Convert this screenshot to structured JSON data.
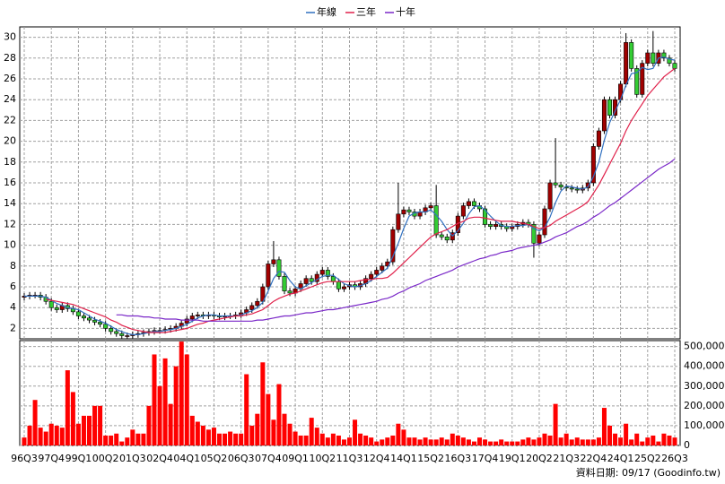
{
  "chart_data": {
    "type": "candlestick",
    "categories": [
      "96Q3",
      null,
      null,
      null,
      null,
      "97Q4",
      null,
      null,
      null,
      null,
      "99Q1",
      null,
      null,
      null,
      null,
      "00Q2",
      null,
      null,
      null,
      null,
      "01Q3",
      null,
      null,
      null,
      null,
      "02Q4",
      null,
      null,
      null,
      null,
      "04Q1",
      null,
      null,
      null,
      null,
      "05Q2",
      null,
      null,
      null,
      null,
      "06Q3",
      null,
      null,
      null,
      null,
      "07Q4",
      null,
      null,
      null,
      null,
      "09Q1",
      null,
      null,
      null,
      null,
      "10Q2",
      null,
      null,
      null,
      null,
      "11Q3",
      null,
      null,
      null,
      null,
      "12Q4",
      null,
      null,
      null,
      null,
      "14Q1",
      null,
      null,
      null,
      null,
      "15Q2",
      null,
      null,
      null,
      null,
      "16Q3",
      null,
      null,
      null,
      null,
      "17Q4",
      null,
      null,
      null,
      null,
      "19Q1",
      null,
      null,
      null,
      null,
      "20Q2",
      null,
      null,
      null,
      null,
      "21Q3",
      null,
      null,
      null,
      null,
      "22Q4",
      null,
      null,
      null,
      null,
      "24Q1",
      null,
      null,
      null,
      null,
      "25Q2",
      null,
      null,
      null,
      null,
      "26Q3"
    ],
    "open": [
      5.0,
      5.1,
      5.2,
      5.2,
      5.0,
      4.6,
      4.0,
      3.8,
      4.2,
      3.9,
      3.6,
      3.2,
      3.0,
      2.8,
      2.6,
      2.4,
      2.0,
      1.7,
      1.5,
      1.3,
      1.3,
      1.4,
      1.5,
      1.6,
      1.7,
      1.8,
      1.8,
      1.9,
      2.0,
      2.2,
      2.5,
      2.9,
      3.2,
      3.3,
      3.2,
      3.3,
      3.2,
      3.1,
      3.2,
      3.2,
      3.3,
      3.5,
      3.8,
      4.2,
      4.6,
      6.0,
      8.2,
      8.6,
      7.0,
      5.6,
      5.4,
      5.8,
      6.3,
      6.8,
      6.5,
      7.2,
      7.6,
      7.0,
      6.5,
      5.8,
      6.0,
      6.2,
      6.0,
      6.3,
      6.8,
      7.2,
      7.6,
      8.0,
      8.4,
      11.5,
      13.0,
      13.4,
      13.2,
      12.8,
      13.2,
      13.6,
      13.8,
      11.0,
      10.8,
      10.5,
      11.2,
      12.8,
      13.8,
      14.2,
      13.8,
      13.5,
      12.0,
      11.8,
      12.0,
      11.8,
      11.6,
      11.8,
      12.0,
      12.2,
      12.0,
      10.2,
      11.0,
      13.5,
      16.0,
      15.8,
      15.6,
      15.5,
      15.4,
      15.3,
      15.5,
      16.0,
      19.5,
      21.0,
      24.0,
      22.5,
      24.0,
      25.5,
      29.5,
      27.0,
      24.5,
      27.5,
      28.5,
      27.5,
      28.5,
      28.0,
      27.5
    ],
    "high": [
      5.4,
      5.5,
      5.5,
      5.5,
      5.3,
      4.9,
      4.3,
      4.5,
      4.5,
      4.2,
      3.9,
      3.5,
      3.3,
      3.1,
      2.9,
      2.7,
      2.3,
      2.0,
      1.8,
      1.6,
      1.7,
      1.8,
      1.9,
      2.0,
      2.1,
      2.1,
      2.2,
      2.3,
      2.5,
      2.8,
      3.2,
      3.5,
      3.6,
      3.6,
      3.6,
      3.6,
      3.5,
      3.5,
      3.5,
      3.6,
      3.8,
      4.1,
      4.5,
      4.9,
      6.3,
      8.5,
      10.4,
      8.9,
      7.3,
      5.9,
      6.1,
      6.6,
      7.1,
      7.1,
      7.5,
      7.9,
      7.9,
      7.3,
      6.8,
      6.3,
      6.5,
      6.5,
      6.6,
      7.1,
      7.5,
      7.9,
      8.3,
      8.7,
      11.8,
      16.0,
      13.7,
      13.7,
      13.5,
      13.5,
      13.9,
      14.1,
      15.8,
      11.3,
      11.1,
      11.5,
      13.1,
      14.1,
      14.5,
      14.5,
      14.1,
      13.8,
      12.3,
      12.3,
      12.3,
      12.1,
      12.1,
      12.3,
      12.5,
      12.5,
      12.3,
      11.3,
      13.8,
      16.3,
      20.3,
      16.1,
      15.9,
      15.8,
      15.7,
      15.8,
      16.3,
      19.8,
      21.3,
      24.3,
      24.3,
      24.3,
      25.8,
      30.4,
      29.8,
      27.3,
      27.8,
      28.8,
      30.6,
      28.8,
      28.8,
      28.3,
      27.8
    ],
    "low": [
      4.7,
      4.8,
      4.9,
      4.7,
      4.3,
      3.7,
      3.5,
      3.5,
      3.6,
      3.3,
      2.9,
      2.7,
      2.5,
      2.3,
      2.1,
      1.7,
      1.4,
      1.2,
      1.0,
      1.0,
      1.0,
      1.1,
      1.2,
      1.3,
      1.4,
      1.5,
      1.5,
      1.6,
      1.7,
      1.9,
      2.2,
      2.6,
      2.9,
      2.9,
      2.9,
      2.9,
      2.8,
      2.8,
      2.9,
      2.9,
      3.0,
      3.2,
      3.5,
      3.9,
      4.3,
      5.7,
      7.9,
      6.7,
      5.3,
      5.1,
      5.1,
      5.5,
      6.0,
      6.2,
      6.2,
      6.9,
      6.7,
      6.2,
      5.5,
      5.5,
      5.7,
      5.7,
      5.7,
      6.0,
      6.5,
      6.9,
      7.3,
      7.7,
      8.1,
      11.2,
      12.7,
      12.9,
      12.5,
      12.5,
      12.9,
      13.3,
      10.7,
      10.5,
      10.2,
      10.2,
      10.9,
      12.5,
      13.5,
      13.5,
      13.2,
      11.7,
      11.5,
      11.5,
      11.5,
      11.3,
      11.3,
      11.5,
      11.7,
      11.7,
      8.8,
      9.9,
      10.7,
      13.2,
      15.5,
      15.3,
      15.2,
      15.1,
      15.0,
      15.0,
      15.2,
      15.7,
      19.2,
      20.7,
      22.2,
      22.2,
      23.7,
      25.2,
      26.7,
      24.2,
      24.2,
      27.2,
      27.2,
      27.2,
      27.7,
      27.2,
      26.7
    ],
    "close": [
      5.1,
      5.2,
      5.2,
      5.0,
      4.6,
      4.0,
      3.8,
      4.2,
      3.9,
      3.6,
      3.2,
      3.0,
      2.8,
      2.6,
      2.4,
      2.0,
      1.7,
      1.5,
      1.3,
      1.3,
      1.4,
      1.5,
      1.6,
      1.7,
      1.8,
      1.8,
      1.9,
      2.0,
      2.2,
      2.5,
      2.9,
      3.2,
      3.3,
      3.2,
      3.3,
      3.2,
      3.1,
      3.2,
      3.2,
      3.3,
      3.5,
      3.8,
      4.2,
      4.6,
      6.0,
      8.2,
      8.6,
      7.0,
      5.6,
      5.4,
      5.8,
      6.3,
      6.8,
      6.5,
      7.2,
      7.6,
      7.0,
      6.5,
      5.8,
      6.0,
      6.2,
      6.0,
      6.3,
      6.8,
      7.2,
      7.6,
      8.0,
      8.4,
      11.5,
      13.0,
      13.4,
      13.2,
      12.8,
      13.2,
      13.6,
      13.8,
      11.0,
      10.8,
      10.5,
      11.2,
      12.8,
      13.8,
      14.2,
      13.8,
      13.5,
      12.0,
      11.8,
      12.0,
      11.8,
      11.6,
      11.8,
      12.0,
      12.2,
      12.0,
      10.2,
      11.0,
      13.5,
      16.0,
      15.8,
      15.6,
      15.5,
      15.4,
      15.3,
      15.5,
      16.0,
      19.5,
      21.0,
      24.0,
      22.5,
      24.0,
      25.5,
      29.5,
      27.0,
      24.5,
      27.5,
      28.5,
      27.5,
      28.5,
      28.0,
      27.5,
      27.0
    ],
    "up_color": "#a00000",
    "down_color": "#33cc33",
    "ylim": [
      1,
      31
    ],
    "yticks": [
      2,
      4,
      6,
      8,
      10,
      12,
      14,
      16,
      18,
      20,
      22,
      24,
      26,
      28,
      30
    ],
    "grid": true,
    "series": [
      {
        "name": "年線",
        "color": "#3070c0",
        "values": [
          5.1,
          5.1,
          5.1,
          5.1,
          5.0,
          4.7,
          4.4,
          4.2,
          4.0,
          3.9,
          3.8,
          3.5,
          3.2,
          2.9,
          2.7,
          2.5,
          2.2,
          1.9,
          1.7,
          1.5,
          1.4,
          1.4,
          1.5,
          1.6,
          1.7,
          1.7,
          1.8,
          1.9,
          2.0,
          2.2,
          2.4,
          2.7,
          3.0,
          3.2,
          3.3,
          3.3,
          3.2,
          3.2,
          3.2,
          3.2,
          3.3,
          3.5,
          3.7,
          4.0,
          4.5,
          5.6,
          6.8,
          7.5,
          7.4,
          6.6,
          6.0,
          5.8,
          6.1,
          6.4,
          6.7,
          7.0,
          7.1,
          7.1,
          6.7,
          6.3,
          6.1,
          6.0,
          6.1,
          6.3,
          6.6,
          7.0,
          7.4,
          7.8,
          8.9,
          10.2,
          11.6,
          12.8,
          13.1,
          13.2,
          13.2,
          13.4,
          12.9,
          12.3,
          11.5,
          10.9,
          11.4,
          12.1,
          13.0,
          13.7,
          13.8,
          13.4,
          12.8,
          12.3,
          11.9,
          11.8,
          11.8,
          11.9,
          11.9,
          12.0,
          11.6,
          11.4,
          11.7,
          12.7,
          14.1,
          15.2,
          15.7,
          15.6,
          15.5,
          15.4,
          15.6,
          16.6,
          18.0,
          20.1,
          21.8,
          22.9,
          24.0,
          25.4,
          26.5,
          26.6,
          27.1,
          26.9,
          27.0,
          28.0,
          28.1,
          27.9,
          27.8
        ]
      },
      {
        "name": "三年",
        "color": "#e0204a",
        "values": [
          null,
          null,
          null,
          null,
          4.8,
          4.7,
          4.6,
          4.5,
          4.4,
          4.3,
          4.1,
          3.9,
          3.7,
          3.5,
          3.3,
          3.1,
          2.8,
          2.6,
          2.3,
          2.1,
          1.9,
          1.8,
          1.7,
          1.6,
          1.6,
          1.6,
          1.6,
          1.7,
          1.8,
          1.9,
          2.0,
          2.2,
          2.4,
          2.5,
          2.7,
          2.8,
          2.9,
          3.0,
          3.1,
          3.2,
          3.2,
          3.3,
          3.4,
          3.6,
          3.8,
          4.2,
          4.6,
          4.9,
          5.1,
          5.3,
          5.4,
          5.6,
          5.8,
          6.0,
          6.2,
          6.4,
          6.5,
          6.5,
          6.5,
          6.5,
          6.5,
          6.5,
          6.6,
          6.7,
          6.7,
          6.8,
          6.8,
          6.9,
          7.3,
          7.8,
          8.3,
          8.8,
          9.3,
          9.8,
          10.3,
          10.8,
          11.1,
          11.3,
          11.5,
          11.8,
          12.1,
          12.3,
          12.6,
          12.7,
          12.7,
          12.6,
          12.5,
          12.4,
          12.3,
          12.3,
          12.3,
          12.2,
          12.1,
          12.0,
          11.8,
          11.6,
          11.7,
          11.9,
          12.3,
          12.6,
          12.9,
          13.2,
          13.5,
          13.8,
          14.2,
          15.0,
          15.8,
          16.8,
          17.8,
          18.8,
          19.8,
          21.0,
          22.0,
          22.8,
          23.6,
          24.4,
          25.0,
          25.6,
          26.2,
          26.6,
          27.0
        ]
      },
      {
        "name": "十年",
        "color": "#7a28c8",
        "values": [
          null,
          null,
          null,
          null,
          null,
          null,
          null,
          null,
          null,
          null,
          null,
          null,
          null,
          null,
          null,
          null,
          null,
          3.3,
          3.3,
          3.2,
          3.2,
          3.2,
          3.1,
          3.1,
          3.0,
          3.0,
          2.9,
          2.9,
          2.9,
          2.8,
          2.8,
          2.8,
          2.8,
          2.7,
          2.7,
          2.7,
          2.7,
          2.7,
          2.7,
          2.7,
          2.7,
          2.7,
          2.7,
          2.8,
          2.8,
          2.9,
          3.0,
          3.1,
          3.2,
          3.2,
          3.3,
          3.4,
          3.5,
          3.5,
          3.6,
          3.7,
          3.8,
          3.8,
          3.9,
          4.0,
          4.1,
          4.2,
          4.3,
          4.4,
          4.5,
          4.6,
          4.8,
          4.9,
          5.1,
          5.4,
          5.6,
          5.9,
          6.1,
          6.3,
          6.6,
          6.8,
          7.0,
          7.2,
          7.4,
          7.6,
          7.9,
          8.1,
          8.3,
          8.5,
          8.7,
          8.8,
          9.0,
          9.1,
          9.3,
          9.4,
          9.5,
          9.7,
          9.8,
          9.9,
          10.0,
          10.1,
          10.3,
          10.5,
          10.8,
          11.0,
          11.2,
          11.5,
          11.8,
          12.0,
          12.3,
          12.7,
          13.0,
          13.4,
          13.8,
          14.1,
          14.5,
          14.9,
          15.3,
          15.7,
          16.1,
          16.5,
          16.9,
          17.3,
          17.6,
          17.9,
          18.3
        ]
      }
    ],
    "volume": {
      "color": "#ff0000",
      "values": [
        40000,
        100000,
        230000,
        90000,
        70000,
        110000,
        100000,
        90000,
        380000,
        270000,
        110000,
        150000,
        150000,
        200000,
        200000,
        50000,
        50000,
        60000,
        20000,
        40000,
        80000,
        60000,
        60000,
        200000,
        460000,
        300000,
        440000,
        210000,
        400000,
        525000,
        460000,
        150000,
        120000,
        100000,
        80000,
        90000,
        60000,
        60000,
        70000,
        60000,
        60000,
        360000,
        100000,
        160000,
        420000,
        260000,
        130000,
        310000,
        160000,
        110000,
        70000,
        50000,
        50000,
        140000,
        90000,
        60000,
        40000,
        60000,
        50000,
        30000,
        40000,
        130000,
        60000,
        50000,
        40000,
        20000,
        30000,
        40000,
        50000,
        110000,
        80000,
        40000,
        40000,
        30000,
        40000,
        30000,
        30000,
        40000,
        30000,
        60000,
        50000,
        40000,
        30000,
        20000,
        40000,
        30000,
        20000,
        20000,
        30000,
        20000,
        20000,
        20000,
        30000,
        40000,
        30000,
        40000,
        60000,
        50000,
        210000,
        40000,
        60000,
        30000,
        40000,
        30000,
        30000,
        30000,
        40000,
        190000,
        100000,
        60000,
        40000,
        110000,
        30000,
        60000,
        20000,
        40000,
        50000,
        20000,
        60000,
        50000,
        40000
      ],
      "ylim": [
        0,
        530000
      ],
      "yticks": [
        0,
        {
          "value": 100000,
          "label": "100,000"
        },
        {
          "value": 200000,
          "label": "200,000"
        },
        {
          "value": 300000,
          "label": "300,000"
        },
        {
          "value": 400000,
          "label": "400,000"
        },
        {
          "value": 500000,
          "label": "500,000"
        }
      ]
    },
    "source": "資料日期: 09/17 (Goodinfo.tw)"
  }
}
